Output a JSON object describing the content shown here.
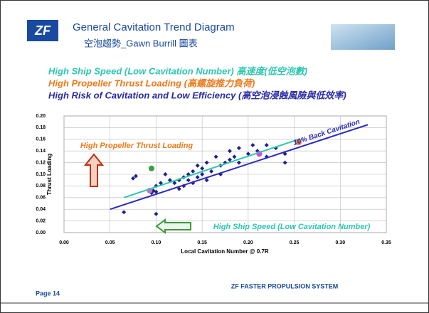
{
  "header": {
    "logo": "ZF",
    "title": "General Cavitation Trend Diagram",
    "subtitle": "空泡趨勢_Gawn Burrill 圖表"
  },
  "notes": [
    {
      "text": "High Ship Speed (Low Cavitation Number) 高速度(低空泡數)",
      "color": "#2cc7b0"
    },
    {
      "text": "High Propeller Thrust Loading (高螺旋推力負荷)",
      "color": "#f07a1a"
    },
    {
      "text": "High Risk of Cavitation and Low Efficiency (高空泡浸蝕風險與低效率)",
      "color": "#2a2aa8"
    }
  ],
  "chart_data": {
    "type": "scatter",
    "xlabel": "Local Cavitation Number @ 0.7R",
    "ylabel": "Thrust Loading",
    "xlim": [
      0,
      0.35
    ],
    "ylim": [
      0,
      0.2
    ],
    "xticks": [
      {
        "value": 0,
        "label": "0.00"
      },
      0.05,
      {
        "value": 0.1,
        "label": "0.10"
      },
      0.15,
      {
        "value": 0.2,
        "label": "0.20"
      },
      0.25,
      {
        "value": 0.3,
        "label": "0.30"
      },
      0.35
    ],
    "yticks": [
      {
        "value": 0,
        "label": "0.00"
      },
      0.02,
      0.04,
      0.06,
      0.08,
      {
        "value": 0.1,
        "label": "0.10"
      },
      0.12,
      0.14,
      0.16,
      0.18,
      {
        "value": 0.2,
        "label": "0.20"
      }
    ],
    "grid": true,
    "series": [
      {
        "mode": "markers",
        "marker": "diamond",
        "color": "#1f1f8f",
        "x": [
          0.065,
          0.075,
          0.078,
          0.095,
          0.097,
          0.1,
          0.1,
          0.1,
          0.105,
          0.11,
          0.115,
          0.12,
          0.125,
          0.125,
          0.13,
          0.13,
          0.135,
          0.135,
          0.14,
          0.14,
          0.145,
          0.145,
          0.15,
          0.15,
          0.155,
          0.155,
          0.16,
          0.165,
          0.17,
          0.17,
          0.175,
          0.18,
          0.18,
          0.185,
          0.19,
          0.19,
          0.2,
          0.205,
          0.21,
          0.22,
          0.22,
          0.23,
          0.24,
          0.24
        ],
        "values": [
          0.035,
          0.093,
          0.097,
          0.068,
          0.072,
          0.07,
          0.08,
          0.032,
          0.085,
          0.1,
          0.09,
          0.085,
          0.09,
          0.075,
          0.095,
          0.08,
          0.1,
          0.09,
          0.085,
          0.105,
          0.095,
          0.115,
          0.1,
          0.11,
          0.09,
          0.12,
          0.105,
          0.13,
          0.115,
          0.1,
          0.12,
          0.125,
          0.14,
          0.13,
          0.145,
          0.12,
          0.135,
          0.15,
          0.14,
          0.15,
          0.13,
          0.145,
          0.12,
          0.135
        ]
      },
      {
        "mode": "markers",
        "marker": "circle",
        "color": "#3aa040",
        "x": [
          0.095
        ],
        "values": [
          0.11
        ]
      },
      {
        "mode": "markers",
        "marker": "circle",
        "color": "#e040e0",
        "x": [
          0.212
        ],
        "values": [
          0.135
        ]
      },
      {
        "mode": "markers",
        "marker": "circle",
        "color": "#f07a1a",
        "x": [
          0.255
        ],
        "values": [
          0.155
        ]
      },
      {
        "mode": "markers",
        "marker": "circle",
        "color": "#d070b0",
        "x": [
          0.093
        ],
        "values": [
          0.072
        ]
      },
      {
        "mode": "line",
        "color": "#2cc7b0",
        "x": [
          0.065,
          0.255
        ],
        "values": [
          0.06,
          0.16
        ]
      },
      {
        "mode": "line",
        "name": "10% Back Cavitation",
        "color": "#2a2ac0",
        "x": [
          0.05,
          0.33
        ],
        "values": [
          0.04,
          0.185
        ]
      }
    ],
    "annotations": [
      {
        "text": "High Propeller Thrust Loading",
        "color": "#f07a1a"
      },
      {
        "text": "High Ship Speed (Low Cavitation Number)",
        "color": "#2cc7b0"
      }
    ]
  },
  "footer": {
    "page": "Page 14",
    "company": "ZF FASTER PROPULSION SYSTEM"
  }
}
